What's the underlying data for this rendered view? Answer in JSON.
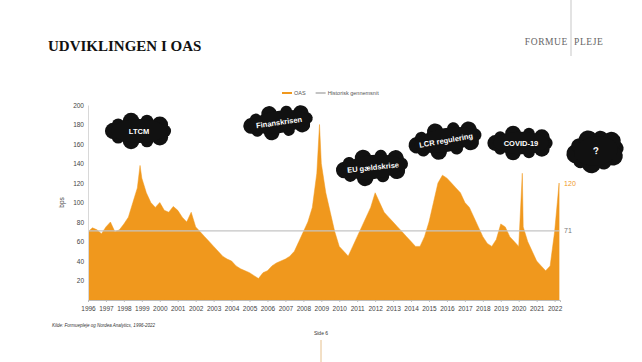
{
  "page": {
    "logo": [
      "FORMUE",
      "PLEJE"
    ],
    "source": "Kilde: Formuepleje og Nordea Analytics, 1996-2022",
    "page_number": "Side 6"
  },
  "chart_data": {
    "type": "area",
    "title": "UDVIKLINGEN I OAS",
    "y_label": "bps",
    "legend": "top",
    "annotations": [
      "LTCM",
      "Finanskrisen",
      "EU gældskrise",
      "LCR regulering",
      "COVID-19",
      "?"
    ],
    "xlim": [
      1996,
      2022.3
    ],
    "xticks": [
      1996,
      1997,
      1998,
      1999,
      2000,
      2001,
      2002,
      2003,
      2004,
      2005,
      2006,
      2007,
      2008,
      2009,
      2010,
      2011,
      2012,
      2013,
      2014,
      2015,
      2016,
      2017,
      2018,
      2019,
      2020,
      2021,
      2022
    ],
    "ylim": [
      0,
      200
    ],
    "yticks": [
      20,
      40,
      60,
      80,
      100,
      120,
      140,
      160,
      180,
      200
    ],
    "series": [
      {
        "name": "OAS",
        "type": "area",
        "color": "#f0981d",
        "x": [
          1996,
          1996.25,
          1996.5,
          1996.75,
          1997,
          1997.25,
          1997.5,
          1997.75,
          1998,
          1998.25,
          1998.5,
          1998.75,
          1998.9,
          1999,
          1999.25,
          1999.5,
          1999.75,
          2000,
          2000.25,
          2000.5,
          2000.75,
          2001,
          2001.25,
          2001.5,
          2001.75,
          2002,
          2002.25,
          2002.5,
          2002.75,
          2003,
          2003.25,
          2003.5,
          2003.75,
          2004,
          2004.25,
          2004.5,
          2004.75,
          2005,
          2005.25,
          2005.5,
          2005.75,
          2006,
          2006.25,
          2006.5,
          2006.75,
          2007,
          2007.25,
          2007.5,
          2007.75,
          2008,
          2008.25,
          2008.5,
          2008.75,
          2008.9,
          2009,
          2009.25,
          2009.5,
          2009.75,
          2010,
          2010.25,
          2010.5,
          2010.75,
          2011,
          2011.25,
          2011.5,
          2011.75,
          2012,
          2012.25,
          2012.5,
          2012.75,
          2013,
          2013.25,
          2013.5,
          2013.75,
          2014,
          2014.25,
          2014.5,
          2014.75,
          2015,
          2015.25,
          2015.5,
          2015.75,
          2016,
          2016.25,
          2016.5,
          2016.75,
          2017,
          2017.25,
          2017.5,
          2017.75,
          2018,
          2018.25,
          2018.5,
          2018.75,
          2019,
          2019.25,
          2019.5,
          2019.75,
          2020,
          2020.2,
          2020.25,
          2020.5,
          2020.75,
          2021,
          2021.25,
          2021.5,
          2021.75,
          2022,
          2022.15,
          2022.25
        ],
        "values": [
          70,
          74,
          72,
          68,
          75,
          80,
          70,
          72,
          78,
          85,
          100,
          115,
          138,
          125,
          110,
          100,
          95,
          100,
          92,
          90,
          96,
          92,
          85,
          80,
          90,
          75,
          70,
          65,
          60,
          55,
          50,
          45,
          42,
          40,
          35,
          32,
          30,
          28,
          25,
          22,
          28,
          30,
          35,
          38,
          40,
          42,
          45,
          50,
          60,
          70,
          80,
          95,
          130,
          180,
          140,
          110,
          90,
          70,
          55,
          50,
          45,
          55,
          65,
          75,
          85,
          95,
          110,
          100,
          90,
          85,
          80,
          75,
          70,
          65,
          60,
          55,
          55,
          65,
          80,
          100,
          120,
          128,
          125,
          120,
          115,
          110,
          100,
          95,
          85,
          75,
          65,
          58,
          55,
          62,
          78,
          75,
          65,
          60,
          55,
          130,
          75,
          60,
          50,
          40,
          35,
          30,
          35,
          70,
          100,
          120
        ]
      },
      {
        "name": "Historisk gennemsnit",
        "type": "line",
        "color": "#c4c4c4",
        "x": [
          1996,
          2022.25
        ],
        "values": [
          71,
          71
        ]
      }
    ]
  }
}
